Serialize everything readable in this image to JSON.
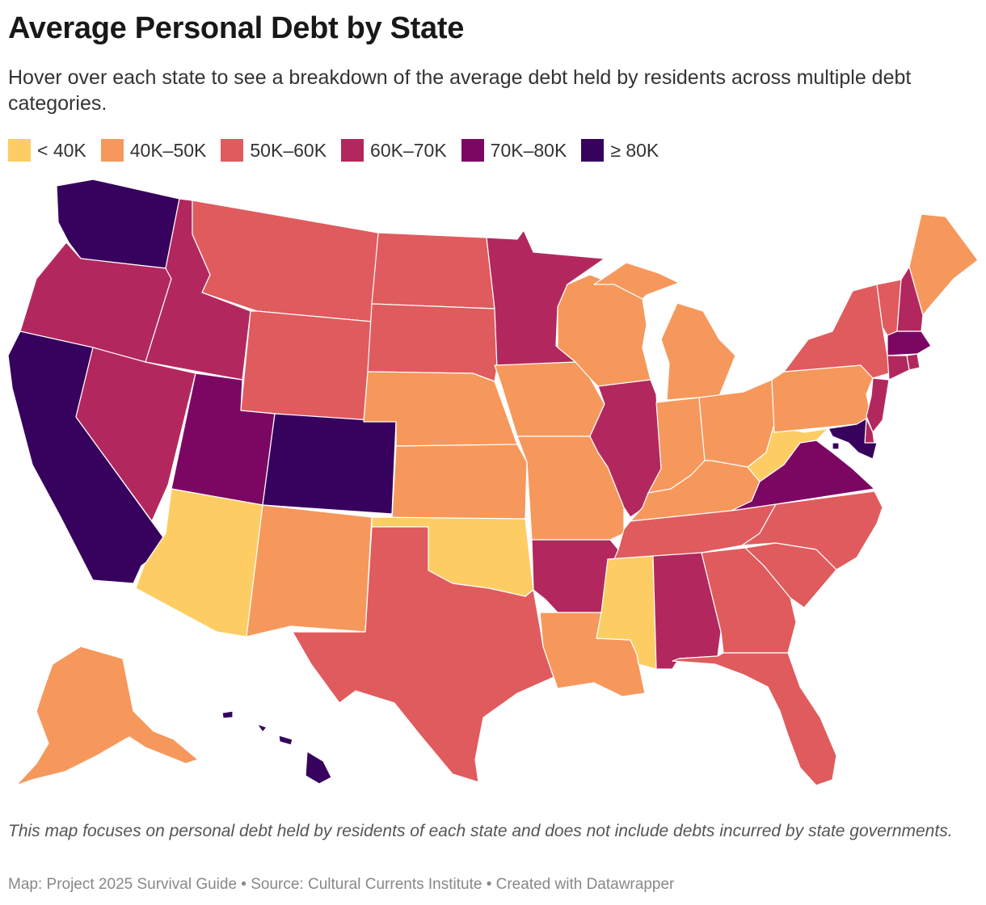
{
  "header": {
    "title": "Average Personal Debt by State",
    "subtitle": "Hover over each state to see a breakdown of the average debt held by residents across multiple debt categories."
  },
  "legend": [
    {
      "label": "< 40K",
      "color": "#fdcd63"
    },
    {
      "label": "40K–50K",
      "color": "#f6985c"
    },
    {
      "label": "50K–60K",
      "color": "#e05b5d"
    },
    {
      "label": "60K–70K",
      "color": "#b2285e"
    },
    {
      "label": "70K–80K",
      "color": "#7c0763"
    },
    {
      "label": "≥ 80K",
      "color": "#37025e"
    }
  ],
  "map": {
    "states": {
      "WA": "≥ 80K",
      "OR": "60K–70K",
      "CA": "≥ 80K",
      "NV": "60K–70K",
      "ID": "60K–70K",
      "MT": "50K–60K",
      "WY": "50K–60K",
      "UT": "70K–80K",
      "AZ": "< 40K",
      "CO": "≥ 80K",
      "NM": "40K–50K",
      "ND": "50K–60K",
      "SD": "50K–60K",
      "NE": "40K–50K",
      "KS": "40K–50K",
      "OK": "< 40K",
      "TX": "50K–60K",
      "MN": "60K–70K",
      "IA": "40K–50K",
      "MO": "40K–50K",
      "AR": "60K–70K",
      "LA": "40K–50K",
      "WI": "40K–50K",
      "IL": "60K–70K",
      "MI": "40K–50K",
      "IN": "40K–50K",
      "OH": "40K–50K",
      "KY": "40K–50K",
      "TN": "50K–60K",
      "MS": "< 40K",
      "AL": "60K–70K",
      "GA": "50K–60K",
      "FL": "50K–60K",
      "SC": "50K–60K",
      "NC": "50K–60K",
      "VA": "70K–80K",
      "WV": "< 40K",
      "PA": "40K–50K",
      "NY": "50K–60K",
      "VT": "50K–60K",
      "NH": "60K–70K",
      "ME": "40K–50K",
      "MA": "70K–80K",
      "RI": "60K–70K",
      "CT": "60K–70K",
      "NJ": "60K–70K",
      "DE": "60K–70K",
      "MD": "≥ 80K",
      "DC": "≥ 80K",
      "AK": "40K–50K",
      "HI": "≥ 80K"
    }
  },
  "footer": {
    "notes": "This map focuses on personal debt held by residents of each state and does not include debts incurred by state governments.",
    "source": "Map: Project 2025 Survival Guide • Source: Cultural Currents Institute • Created with Datawrapper"
  }
}
